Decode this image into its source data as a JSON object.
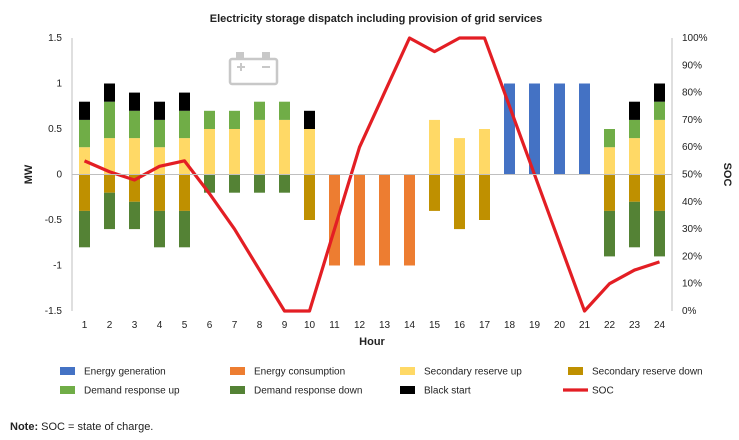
{
  "chart_data": {
    "type": "bar",
    "title": "Electricity storage dispatch including provision of grid services",
    "xlabel": "Hour",
    "ylabel": "MW",
    "y2label": "SOC",
    "ylim": [
      -1.5,
      1.5
    ],
    "y_ticks": [
      "1.5",
      "1",
      "0.5",
      "0",
      "-0.5",
      "-1",
      "-1.5"
    ],
    "y2lim": [
      0,
      100
    ],
    "y2_ticks": [
      "100%",
      "90%",
      "80%",
      "70%",
      "60%",
      "50%",
      "40%",
      "30%",
      "20%",
      "10%",
      "0%"
    ],
    "categories": [
      "1",
      "2",
      "3",
      "4",
      "5",
      "6",
      "7",
      "8",
      "9",
      "10",
      "11",
      "12",
      "13",
      "14",
      "15",
      "16",
      "17",
      "18",
      "19",
      "20",
      "21",
      "22",
      "23",
      "24"
    ],
    "grid": false,
    "legend_position": "bottom",
    "icon": "battery-icon",
    "series_positive": [
      {
        "name": "Energy generation",
        "color": "#4472C4",
        "values": [
          0,
          0,
          0,
          0,
          0,
          0,
          0,
          0,
          0,
          0,
          0,
          0,
          0,
          0,
          0,
          0,
          0,
          1,
          1,
          1,
          1,
          0,
          0,
          0
        ]
      },
      {
        "name": "Secondary reserve up",
        "color": "#FFD966",
        "values": [
          0.3,
          0.4,
          0.4,
          0.3,
          0.4,
          0.5,
          0.5,
          0.6,
          0.6,
          0.5,
          0,
          0,
          0,
          0,
          0.6,
          0.4,
          0.5,
          0,
          0,
          0,
          0,
          0.3,
          0.4,
          0.6
        ]
      },
      {
        "name": "Demand response up",
        "color": "#70AD47",
        "values": [
          0.3,
          0.4,
          0.3,
          0.3,
          0.3,
          0.2,
          0.2,
          0.2,
          0.2,
          0,
          0,
          0,
          0,
          0,
          0,
          0,
          0,
          0,
          0,
          0,
          0,
          0.2,
          0.2,
          0.2
        ]
      },
      {
        "name": "Black start",
        "color": "#000000",
        "values": [
          0.2,
          0.2,
          0.2,
          0.2,
          0.2,
          0,
          0,
          0,
          0,
          0.2,
          0,
          0,
          0,
          0,
          0,
          0,
          0,
          0,
          0,
          0,
          0,
          0,
          0.2,
          0.2
        ]
      }
    ],
    "series_negative": [
      {
        "name": "Energy consumption",
        "color": "#ED7D31",
        "values": [
          0,
          0,
          0,
          0,
          0,
          0,
          0,
          0,
          0,
          0,
          -1,
          -1,
          -1,
          -1,
          0,
          0,
          0,
          0,
          0,
          0,
          0,
          0,
          0,
          0
        ]
      },
      {
        "name": "Secondary reserve down",
        "color": "#BF9000",
        "values": [
          -0.4,
          -0.2,
          -0.3,
          -0.4,
          -0.4,
          0,
          0,
          0,
          0,
          -0.5,
          0,
          0,
          0,
          0,
          -0.4,
          -0.6,
          -0.5,
          0,
          0,
          0,
          0,
          -0.4,
          -0.3,
          -0.4
        ]
      },
      {
        "name": "Demand response down",
        "color": "#548235",
        "values": [
          -0.4,
          -0.4,
          -0.3,
          -0.4,
          -0.4,
          -0.2,
          -0.2,
          -0.2,
          -0.2,
          0,
          0,
          0,
          0,
          0,
          0,
          0,
          0,
          0,
          0,
          0,
          0,
          -0.5,
          -0.5,
          -0.5
        ]
      }
    ],
    "soc": {
      "name": "SOC",
      "color": "#E31E24",
      "values": [
        55,
        51,
        48,
        53,
        55,
        43,
        30,
        15,
        0,
        0,
        30,
        60,
        80,
        100,
        95,
        100,
        100,
        75,
        50,
        25,
        0,
        10,
        15,
        18
      ]
    },
    "legend": [
      {
        "name": "Energy generation",
        "color": "#4472C4",
        "kind": "box"
      },
      {
        "name": "Energy consumption",
        "color": "#ED7D31",
        "kind": "box"
      },
      {
        "name": "Secondary reserve up",
        "color": "#FFD966",
        "kind": "box"
      },
      {
        "name": "Secondary reserve down",
        "color": "#BF9000",
        "kind": "box"
      },
      {
        "name": "Demand response up",
        "color": "#70AD47",
        "kind": "box"
      },
      {
        "name": "Demand response down",
        "color": "#548235",
        "kind": "box"
      },
      {
        "name": "Black start",
        "color": "#000000",
        "kind": "box"
      },
      {
        "name": "SOC",
        "color": "#E31E24",
        "kind": "line"
      }
    ]
  },
  "note": {
    "label": "Note:",
    "text": " SOC = state of charge."
  }
}
